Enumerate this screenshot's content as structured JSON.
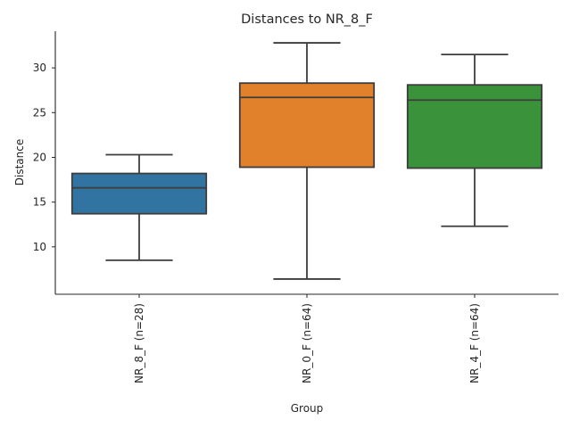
{
  "chart_data": {
    "type": "box",
    "title": "Distances to NR_8_F",
    "xlabel": "Group",
    "ylabel": "Distance",
    "ylim": [
      4.7,
      34.1
    ],
    "yticks": [
      10,
      15,
      20,
      25,
      30
    ],
    "categories": [
      "NR_8_F (n=28)",
      "NR_0_F (n=64)",
      "NR_4_F (n=64)"
    ],
    "boxes": [
      {
        "name": "NR_8_F (n=28)",
        "color": "#3274a1",
        "whisker_low": 8.5,
        "q1": 13.7,
        "median": 16.6,
        "q3": 18.2,
        "whisker_high": 20.3
      },
      {
        "name": "NR_0_F (n=64)",
        "color": "#e1812c",
        "whisker_low": 6.4,
        "q1": 18.9,
        "median": 26.7,
        "q3": 28.3,
        "whisker_high": 32.8
      },
      {
        "name": "NR_4_F (n=64)",
        "color": "#3a923a",
        "whisker_low": 12.3,
        "q1": 18.8,
        "median": 26.4,
        "q3": 28.1,
        "whisker_high": 31.5
      }
    ]
  }
}
